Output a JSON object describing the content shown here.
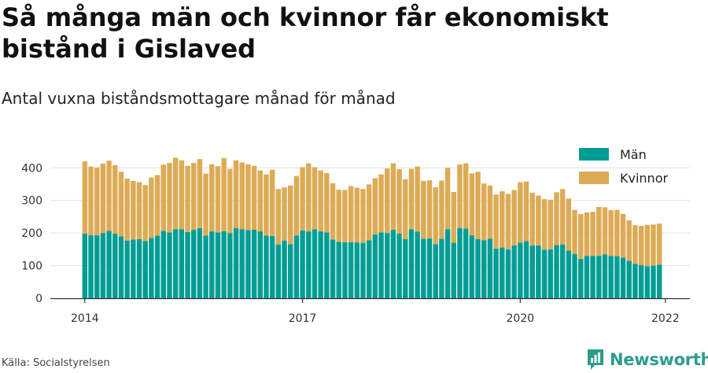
{
  "title": "Så många män och kvinnor får ekonomiskt bistånd i Gislaved",
  "subtitle": "Antal vuxna biståndsmottagare månad för månad",
  "source": "Källa: Socialstyrelsen",
  "brand": {
    "name": "Newsworthy",
    "icon": "newsworthy-logo-icon"
  },
  "colors": {
    "men": "#009d94",
    "women": "#ddab55",
    "grid": "#e3e3e3",
    "axis": "#333333"
  },
  "chart_data": {
    "type": "bar",
    "stacked": true,
    "x_start": "2014-01",
    "x_ticks": [
      "2014",
      "2017",
      "2020",
      "2022"
    ],
    "y_ticks": [
      0,
      100,
      200,
      300,
      400
    ],
    "ylim": [
      0,
      440
    ],
    "grid": true,
    "legend": "top-right",
    "series": [
      {
        "name": "Män",
        "values": [
          198,
          193,
          193,
          200,
          207,
          198,
          190,
          177,
          180,
          181,
          175,
          185,
          192,
          207,
          202,
          212,
          212,
          203,
          210,
          215,
          192,
          205,
          202,
          206,
          200,
          215,
          212,
          209,
          210,
          205,
          192,
          191,
          165,
          177,
          166,
          192,
          208,
          205,
          212,
          205,
          202,
          180,
          173,
          172,
          172,
          171,
          170,
          178,
          196,
          202,
          200,
          210,
          198,
          181,
          212,
          204,
          182,
          184,
          166,
          182,
          212,
          170,
          215,
          214,
          193,
          181,
          178,
          183,
          152,
          156,
          150,
          162,
          170,
          175,
          162,
          162,
          149,
          150,
          163,
          165,
          146,
          136,
          121,
          130,
          130,
          130,
          134,
          130,
          129,
          125,
          115,
          105,
          102,
          98,
          100,
          103
        ],
        "color": "#009d94"
      },
      {
        "name": "Kvinnor",
        "values": [
          222,
          211,
          208,
          213,
          215,
          210,
          198,
          190,
          180,
          175,
          172,
          185,
          186,
          203,
          213,
          219,
          211,
          203,
          205,
          212,
          190,
          206,
          203,
          224,
          197,
          208,
          204,
          202,
          196,
          187,
          188,
          203,
          170,
          163,
          180,
          183,
          194,
          209,
          190,
          187,
          182,
          173,
          160,
          160,
          172,
          168,
          165,
          171,
          172,
          178,
          198,
          204,
          198,
          184,
          185,
          200,
          178,
          178,
          174,
          179,
          188,
          156,
          196,
          200,
          190,
          207,
          174,
          163,
          166,
          172,
          170,
          170,
          186,
          183,
          162,
          153,
          155,
          152,
          162,
          170,
          160,
          135,
          137,
          133,
          135,
          150,
          145,
          140,
          142,
          134,
          124,
          119,
          120,
          127,
          126,
          126
        ],
        "color": "#ddab55"
      }
    ]
  }
}
